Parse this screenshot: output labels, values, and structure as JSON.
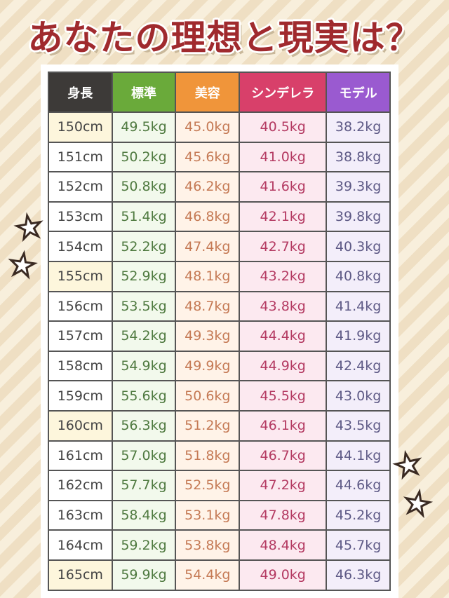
{
  "title": "あなたの理想と現実は？",
  "colors": {
    "title": "#a02a2e",
    "height_header": "#3d3a38",
    "standard": "#6aaa3a",
    "beauty": "#f0953a",
    "cinderella": "#d8406a",
    "model": "#9a5ad0"
  },
  "table": {
    "headers": [
      "身長",
      "標準",
      "美容",
      "シンデレラ",
      "モデル"
    ],
    "rows": [
      [
        "150cm",
        "49.5kg",
        "45.0kg",
        "40.5kg",
        "38.2kg"
      ],
      [
        "151cm",
        "50.2kg",
        "45.6kg",
        "41.0kg",
        "38.8kg"
      ],
      [
        "152cm",
        "50.8kg",
        "46.2kg",
        "41.6kg",
        "39.3kg"
      ],
      [
        "153cm",
        "51.4kg",
        "46.8kg",
        "42.1kg",
        "39.8kg"
      ],
      [
        "154cm",
        "52.2kg",
        "47.4kg",
        "42.7kg",
        "40.3kg"
      ],
      [
        "155cm",
        "52.9kg",
        "48.1kg",
        "43.2kg",
        "40.8kg"
      ],
      [
        "156cm",
        "53.5kg",
        "48.7kg",
        "43.8kg",
        "41.4kg"
      ],
      [
        "157cm",
        "54.2kg",
        "49.3kg",
        "44.4kg",
        "41.9kg"
      ],
      [
        "158cm",
        "54.9kg",
        "49.9kg",
        "44.9kg",
        "42.4kg"
      ],
      [
        "159cm",
        "55.6kg",
        "50.6kg",
        "45.5kg",
        "43.0kg"
      ],
      [
        "160cm",
        "56.3kg",
        "51.2kg",
        "46.1kg",
        "43.5kg"
      ],
      [
        "161cm",
        "57.0kg",
        "51.8kg",
        "46.7kg",
        "44.1kg"
      ],
      [
        "162cm",
        "57.7kg",
        "52.5kg",
        "47.2kg",
        "44.6kg"
      ],
      [
        "163cm",
        "58.4kg",
        "53.1kg",
        "47.8kg",
        "45.2kg"
      ],
      [
        "164cm",
        "59.2kg",
        "53.8kg",
        "48.4kg",
        "45.7kg"
      ],
      [
        "165cm",
        "59.9kg",
        "54.4kg",
        "49.0kg",
        "46.3kg"
      ]
    ],
    "highlighted_heights": [
      "150cm",
      "155cm",
      "160cm",
      "165cm"
    ]
  }
}
